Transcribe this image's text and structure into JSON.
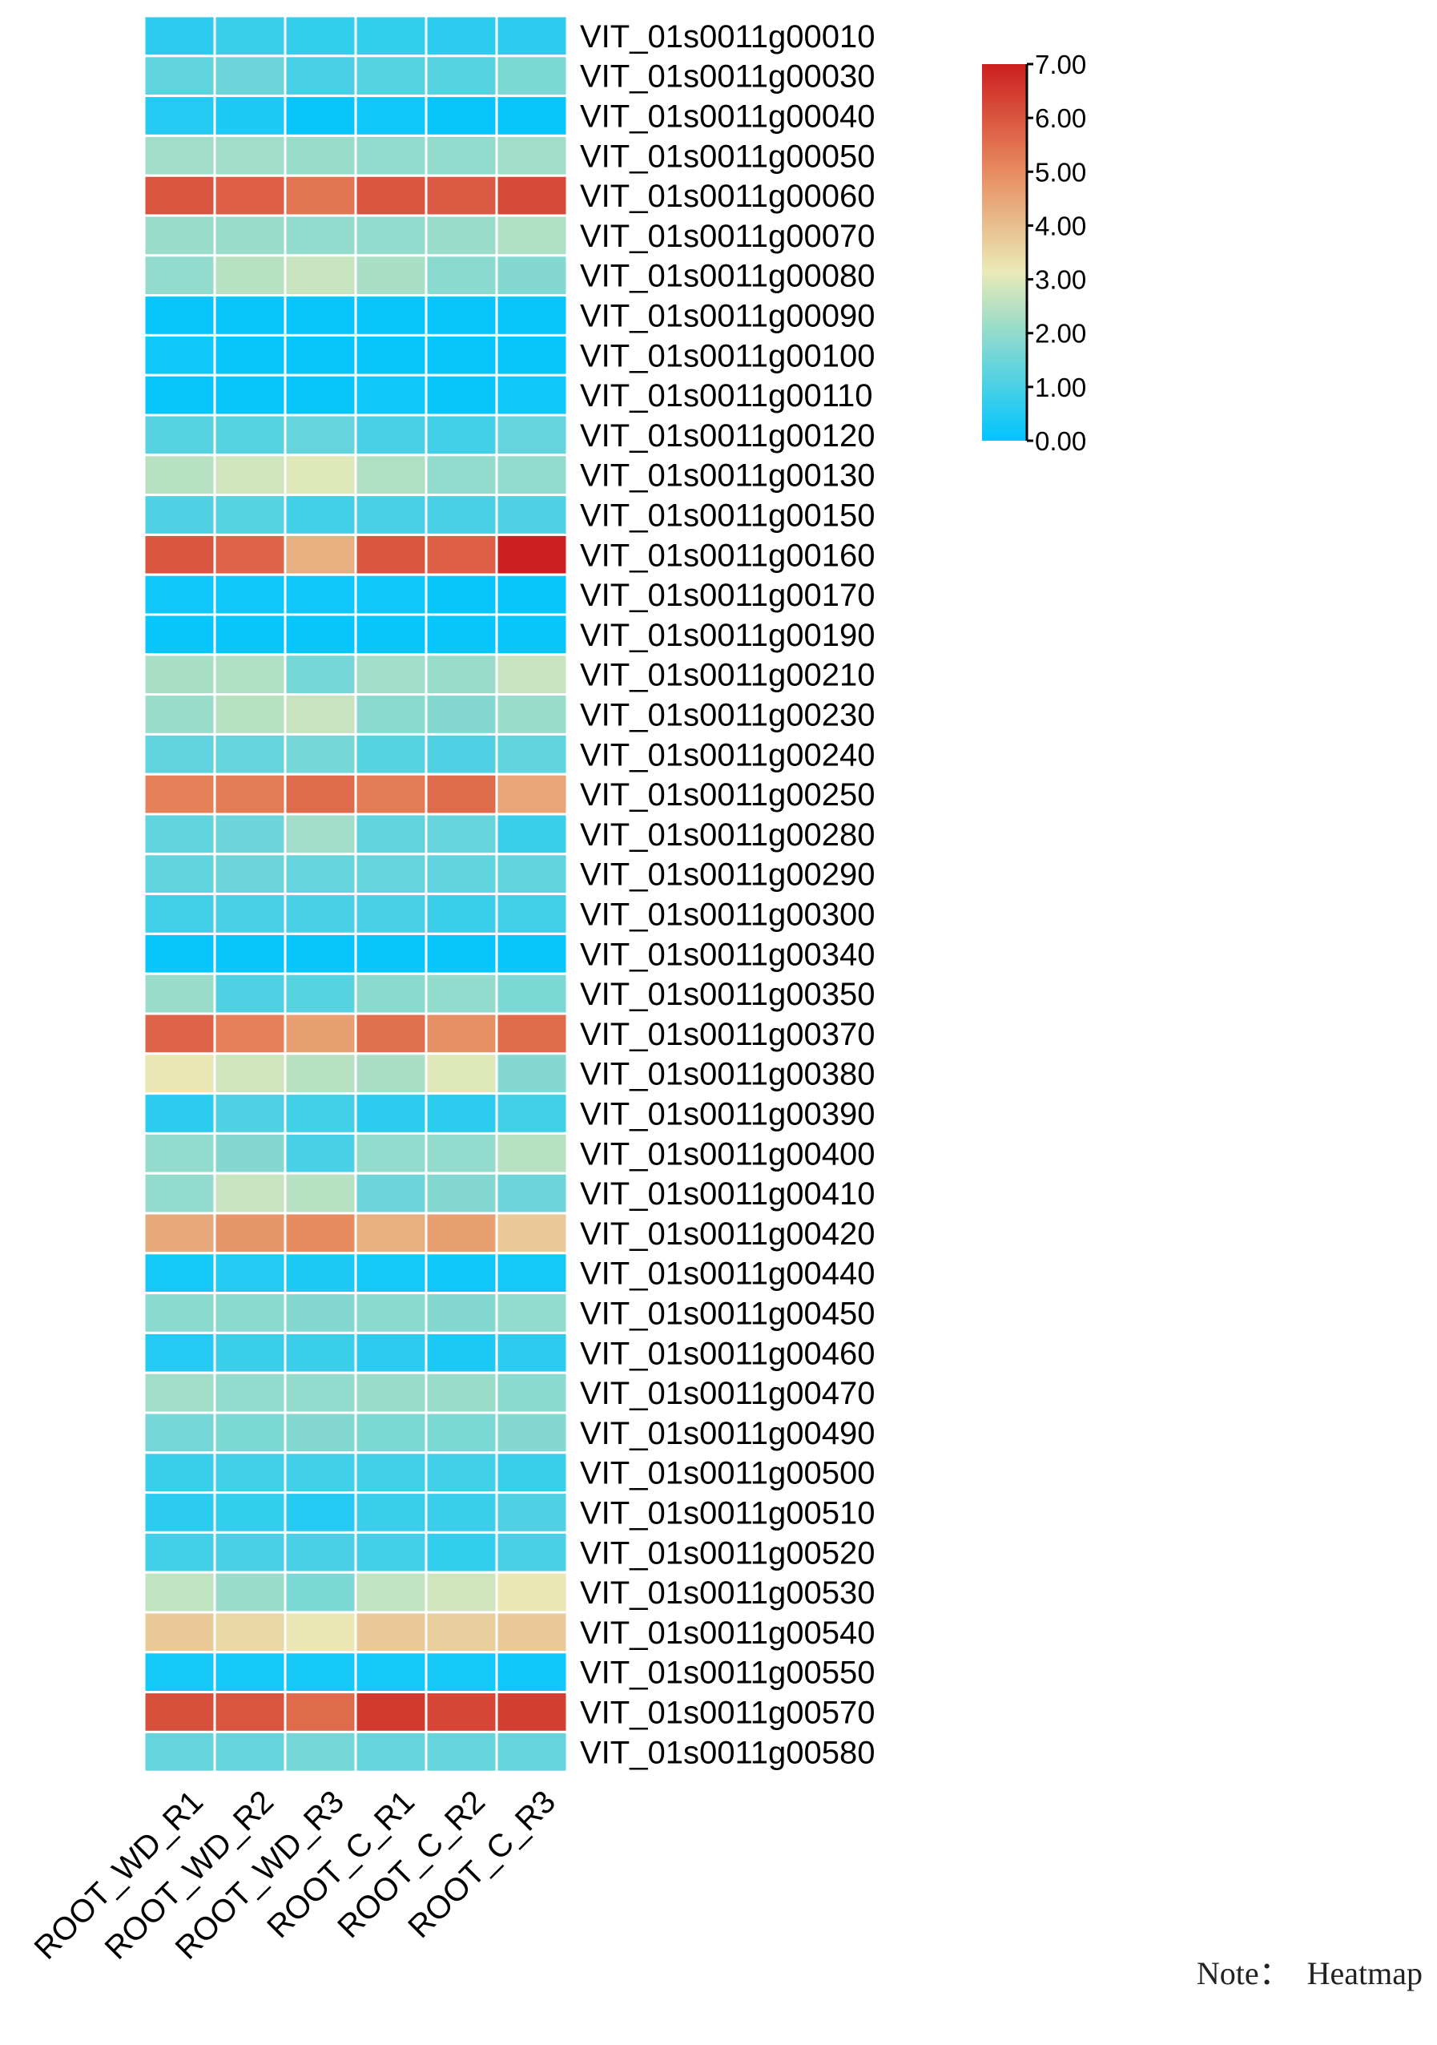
{
  "chart_data": {
    "type": "heatmap",
    "title": "",
    "columns": [
      "ROOT_WD_R1",
      "ROOT_WD_R2",
      "ROOT_WD_R3",
      "ROOT_C_R1",
      "ROOT_C_R2",
      "ROOT_C_R3"
    ],
    "rows": [
      "VIT_01s0011g00010",
      "VIT_01s0011g00030",
      "VIT_01s0011g00040",
      "VIT_01s0011g00050",
      "VIT_01s0011g00060",
      "VIT_01s0011g00070",
      "VIT_01s0011g00080",
      "VIT_01s0011g00090",
      "VIT_01s0011g00100",
      "VIT_01s0011g00110",
      "VIT_01s0011g00120",
      "VIT_01s0011g00130",
      "VIT_01s0011g00150",
      "VIT_01s0011g00160",
      "VIT_01s0011g00170",
      "VIT_01s0011g00190",
      "VIT_01s0011g00210",
      "VIT_01s0011g00230",
      "VIT_01s0011g00240",
      "VIT_01s0011g00250",
      "VIT_01s0011g00280",
      "VIT_01s0011g00290",
      "VIT_01s0011g00300",
      "VIT_01s0011g00340",
      "VIT_01s0011g00350",
      "VIT_01s0011g00370",
      "VIT_01s0011g00380",
      "VIT_01s0011g00390",
      "VIT_01s0011g00400",
      "VIT_01s0011g00410",
      "VIT_01s0011g00420",
      "VIT_01s0011g00440",
      "VIT_01s0011g00450",
      "VIT_01s0011g00460",
      "VIT_01s0011g00470",
      "VIT_01s0011g00490",
      "VIT_01s0011g00500",
      "VIT_01s0011g00510",
      "VIT_01s0011g00520",
      "VIT_01s0011g00530",
      "VIT_01s0011g00540",
      "VIT_01s0011g00550",
      "VIT_01s0011g00570",
      "VIT_01s0011g00580"
    ],
    "values": [
      [
        0.6,
        0.8,
        0.7,
        0.7,
        0.6,
        0.6
      ],
      [
        1.3,
        1.5,
        1.0,
        1.2,
        1.2,
        1.7
      ],
      [
        0.5,
        0.4,
        0.1,
        0.2,
        0.1,
        0.1
      ],
      [
        2.2,
        2.2,
        2.1,
        2.0,
        2.0,
        2.2
      ],
      [
        6.0,
        5.8,
        5.4,
        6.0,
        5.9,
        6.2
      ],
      [
        2.1,
        2.1,
        2.0,
        2.0,
        2.1,
        2.4
      ],
      [
        2.0,
        2.5,
        2.7,
        2.3,
        1.9,
        1.8
      ],
      [
        0.1,
        0.1,
        0.1,
        0.1,
        0.1,
        0.1
      ],
      [
        0.2,
        0.1,
        0.1,
        0.1,
        0.1,
        0.1
      ],
      [
        0.1,
        0.1,
        0.1,
        0.2,
        0.1,
        0.2
      ],
      [
        1.2,
        1.2,
        1.4,
        1.0,
        0.9,
        1.4
      ],
      [
        2.5,
        2.8,
        3.0,
        2.4,
        2.0,
        2.0
      ],
      [
        1.1,
        1.2,
        0.9,
        1.0,
        1.0,
        1.1
      ],
      [
        6.0,
        5.7,
        4.3,
        6.0,
        5.8,
        7.0
      ],
      [
        0.2,
        0.2,
        0.2,
        0.2,
        0.1,
        0.1
      ],
      [
        0.1,
        0.1,
        0.1,
        0.1,
        0.1,
        0.1
      ],
      [
        2.3,
        2.4,
        1.6,
        2.2,
        2.1,
        2.7
      ],
      [
        2.1,
        2.5,
        2.7,
        1.9,
        1.8,
        2.1
      ],
      [
        1.3,
        1.4,
        1.6,
        1.2,
        1.1,
        1.3
      ],
      [
        5.2,
        5.3,
        5.6,
        5.3,
        5.6,
        4.5
      ],
      [
        1.3,
        1.5,
        2.2,
        1.3,
        1.4,
        0.8
      ],
      [
        1.3,
        1.5,
        1.4,
        1.4,
        1.3,
        1.3
      ],
      [
        0.9,
        1.0,
        1.0,
        1.0,
        0.8,
        0.9
      ],
      [
        0.1,
        0.1,
        0.1,
        0.1,
        0.1,
        0.1
      ],
      [
        2.1,
        1.1,
        1.2,
        1.9,
        2.0,
        1.7
      ],
      [
        5.7,
        5.2,
        4.6,
        5.5,
        4.9,
        5.6
      ],
      [
        3.2,
        2.8,
        2.5,
        2.3,
        3.0,
        1.8
      ],
      [
        0.6,
        1.1,
        0.9,
        0.6,
        0.6,
        0.9
      ],
      [
        2.0,
        1.8,
        1.0,
        2.0,
        2.0,
        2.5
      ],
      [
        2.0,
        2.7,
        2.5,
        1.5,
        1.8,
        1.5
      ],
      [
        4.4,
        4.8,
        5.0,
        4.3,
        4.6,
        3.8
      ],
      [
        0.3,
        0.5,
        0.4,
        0.3,
        0.2,
        0.3
      ],
      [
        1.9,
        1.9,
        1.8,
        1.9,
        1.8,
        2.0
      ],
      [
        0.5,
        0.8,
        0.8,
        0.6,
        0.4,
        0.6
      ],
      [
        2.2,
        2.0,
        2.0,
        2.1,
        2.1,
        1.9
      ],
      [
        1.6,
        1.7,
        1.8,
        1.7,
        1.7,
        1.8
      ],
      [
        0.8,
        0.9,
        0.9,
        0.9,
        0.9,
        0.8
      ],
      [
        0.6,
        0.7,
        0.5,
        0.8,
        0.8,
        1.1
      ],
      [
        0.9,
        1.0,
        1.0,
        0.9,
        0.7,
        1.0
      ],
      [
        2.6,
        2.1,
        1.7,
        2.6,
        2.8,
        3.2
      ],
      [
        3.8,
        3.5,
        3.2,
        3.8,
        3.7,
        3.8
      ],
      [
        0.3,
        0.3,
        0.3,
        0.3,
        0.3,
        0.2
      ],
      [
        6.1,
        6.0,
        5.6,
        6.5,
        6.3,
        6.4
      ],
      [
        1.4,
        1.4,
        1.6,
        1.4,
        1.4,
        1.4
      ]
    ],
    "color_scale": {
      "min": 0.0,
      "max": 7.0,
      "stops": [
        "#00c5ff",
        "#99dcca",
        "#eaeab6",
        "#e7895f",
        "#cc1f1f"
      ],
      "ticks": [
        "0.00",
        "1.00",
        "2.00",
        "3.00",
        "4.00",
        "5.00",
        "6.00",
        "7.00"
      ]
    },
    "note": "Note：  Heatmap"
  }
}
